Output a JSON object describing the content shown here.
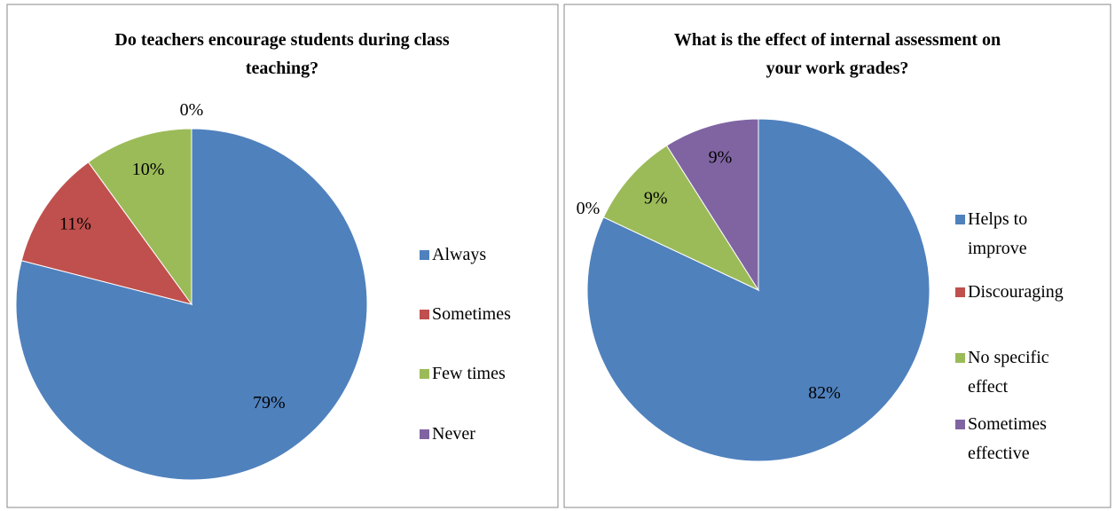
{
  "chart_data": [
    {
      "type": "pie",
      "title": "Do teachers encourage students during class teaching?",
      "categories": [
        "Always",
        "Sometimes",
        "Few times",
        "Never"
      ],
      "values": [
        79,
        11,
        10,
        0
      ],
      "value_labels": [
        "79%",
        "11%",
        "10%",
        "0%"
      ],
      "colors": [
        "#4f81bd",
        "#c0504d",
        "#9bbb59",
        "#8064a2"
      ],
      "legend": "right"
    },
    {
      "type": "pie",
      "title": "What is the effect of internal assessment on your work grades?",
      "categories": [
        "Helps to improve",
        "Discouraging",
        "No specific effect",
        "Sometimes effective"
      ],
      "values": [
        82,
        0,
        9,
        9
      ],
      "value_labels": [
        "82%",
        "0%",
        "9%",
        "9%"
      ],
      "colors": [
        "#4f81bd",
        "#c0504d",
        "#9bbb59",
        "#8064a2"
      ],
      "legend": "right"
    }
  ]
}
